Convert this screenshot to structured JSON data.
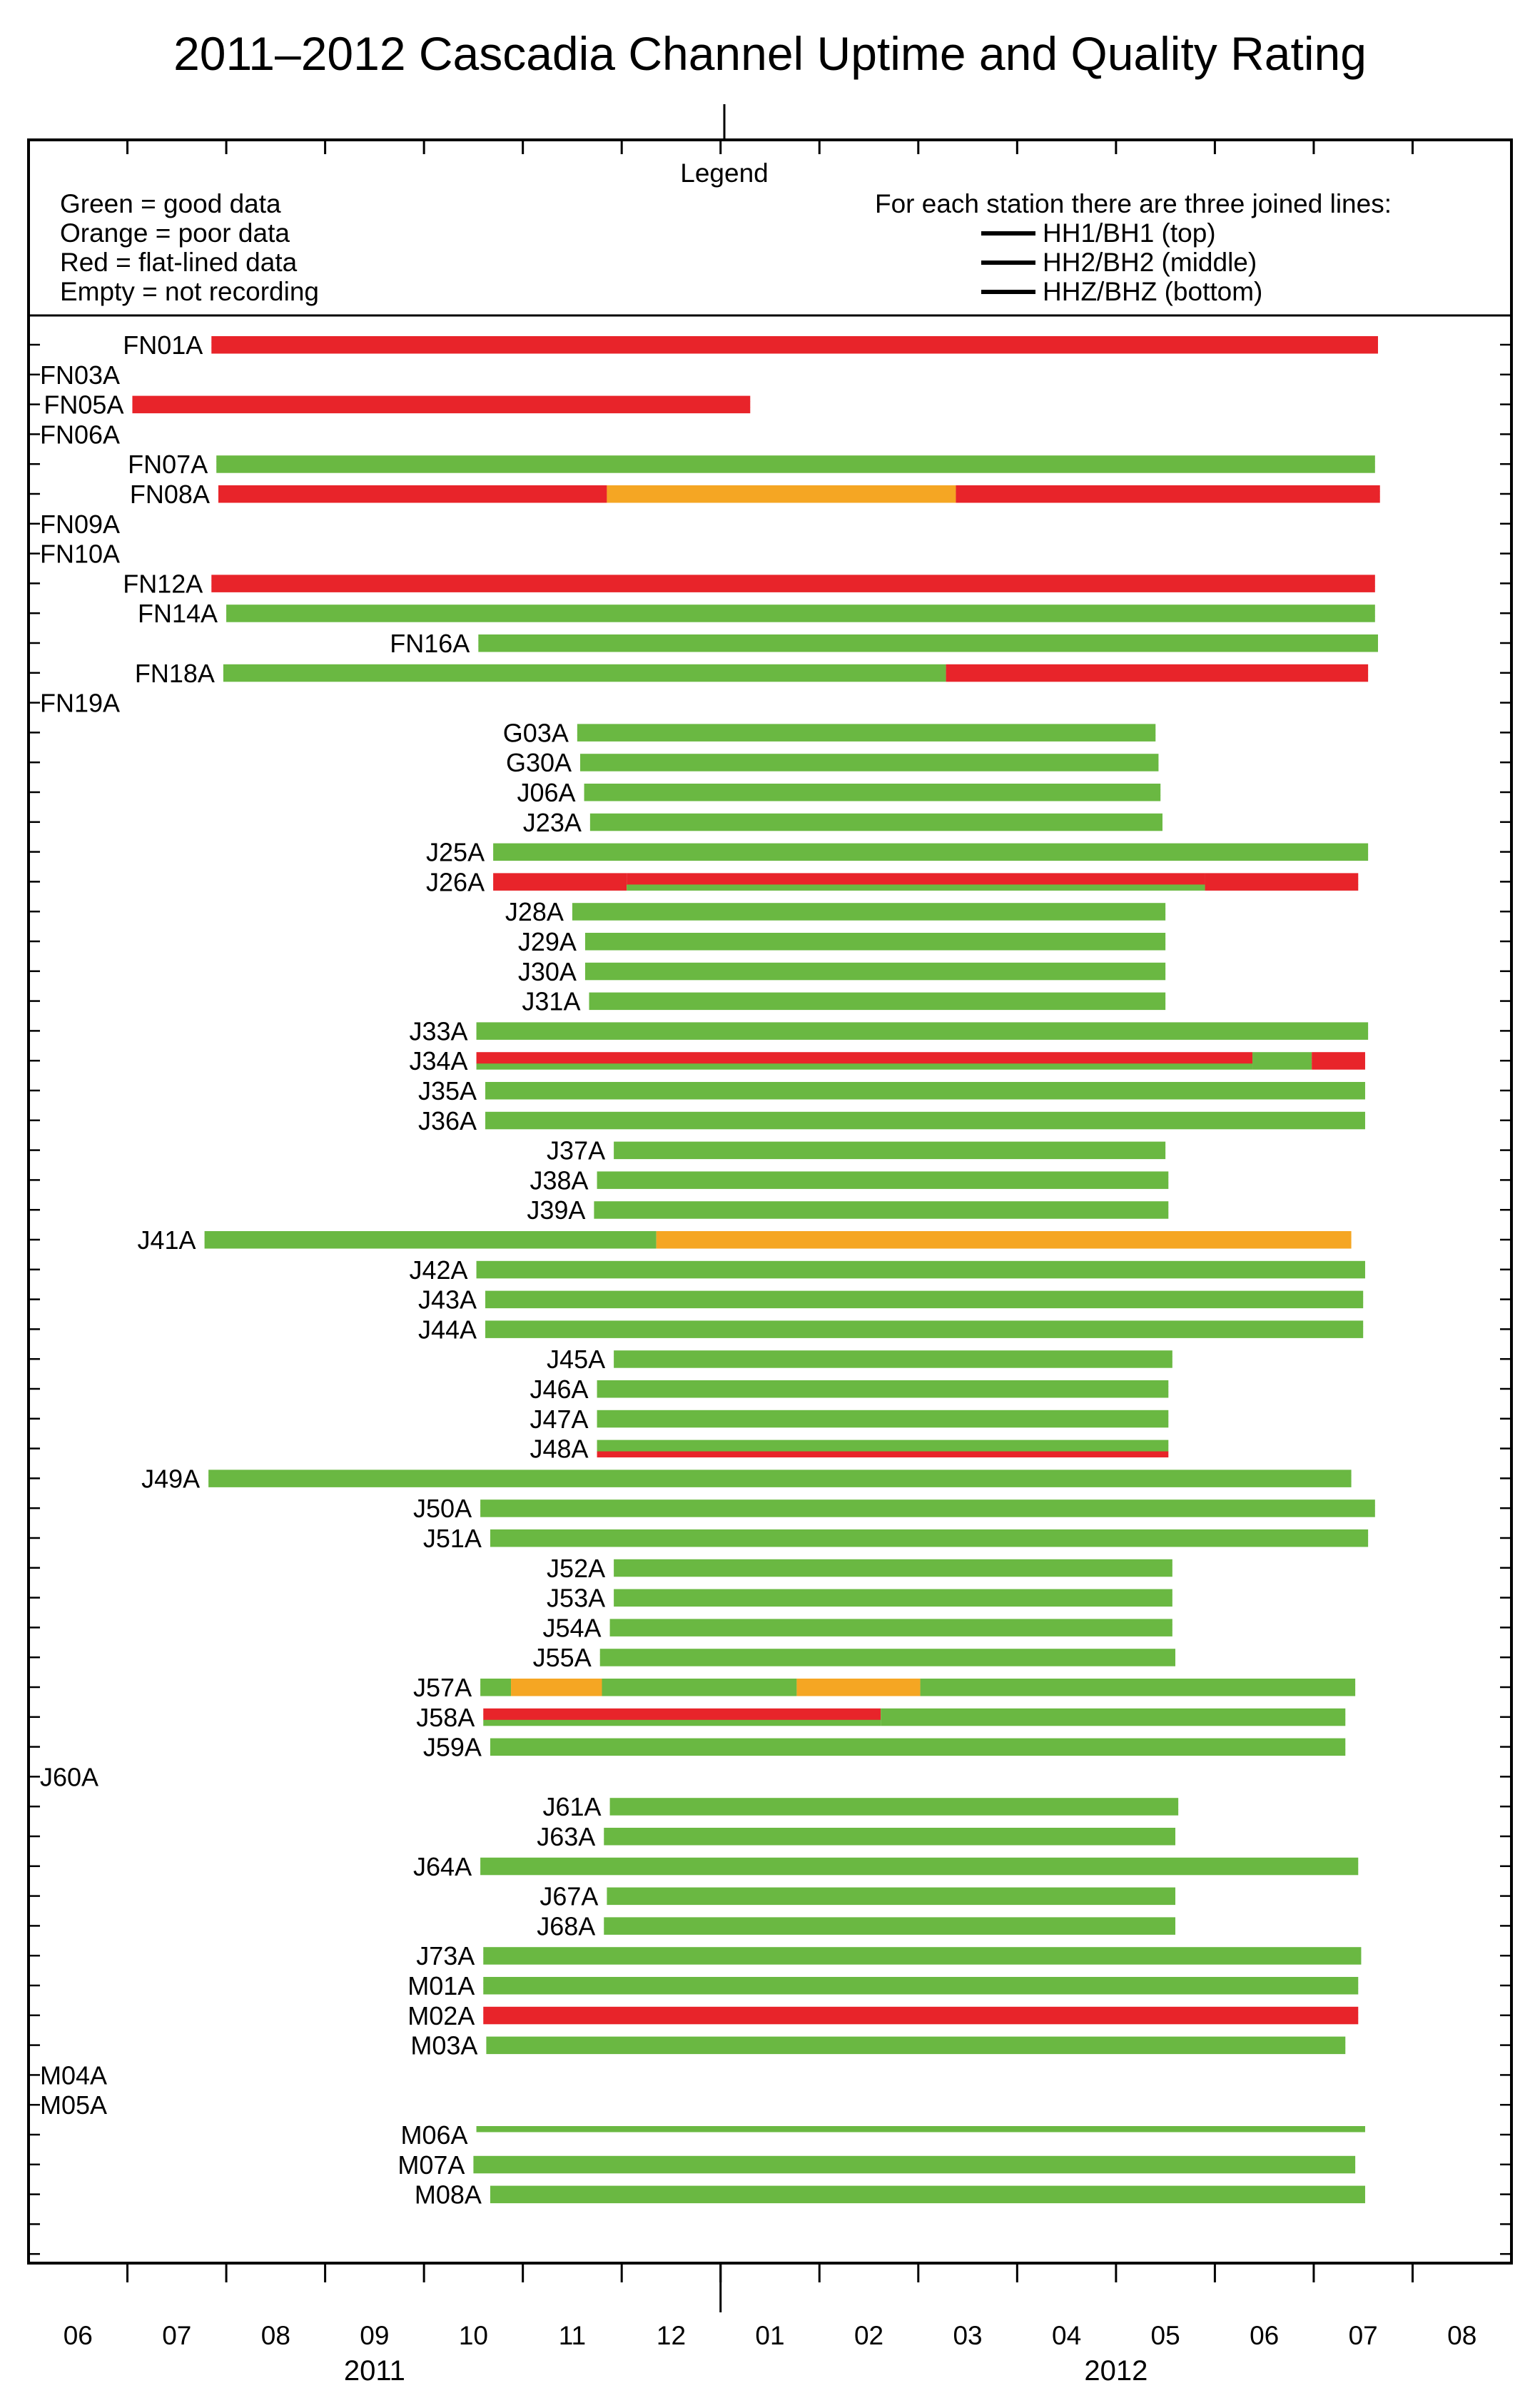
{
  "chart_data": {
    "type": "timeline",
    "title": "2011–2012 Cascadia Channel Uptime and Quality Rating",
    "legend": {
      "heading": "Legend",
      "color_items": [
        "Green = good data",
        "Orange = poor data",
        "Red = flat-lined data",
        "Empty = not recording"
      ],
      "lines_heading": "For each station there are three joined lines:",
      "line_items": [
        "HH1/BH1 (top)",
        "HH2/BH2 (middle)",
        "HHZ/BHZ (bottom)"
      ]
    },
    "colors": {
      "good": "#6ab842",
      "poor": "#f5a623",
      "flat": "#e8242a"
    },
    "x_axis": {
      "start": "2011-05-16",
      "end": "2012-08-15",
      "month_labels": [
        "06",
        "07",
        "08",
        "09",
        "10",
        "11",
        "12",
        "01",
        "02",
        "03",
        "04",
        "05",
        "06",
        "07",
        "08"
      ],
      "month_positions": [
        0.5,
        1.5,
        2.5,
        3.5,
        4.5,
        5.5,
        6.5,
        7.5,
        8.5,
        9.5,
        10.5,
        11.5,
        12.5,
        13.5,
        14.5
      ],
      "year_labels": [
        {
          "label": "2011",
          "month": 3.5
        },
        {
          "label": "2012",
          "month": 11.0
        }
      ]
    },
    "stations": [
      {
        "name": "FN01A",
        "segments": [
          {
            "start": 1.85,
            "end": 13.65,
            "code": "fff"
          }
        ]
      },
      {
        "name": "FN03A",
        "segments": []
      },
      {
        "name": "FN05A",
        "segments": [
          {
            "start": 1.05,
            "end": 7.3,
            "code": "fff"
          }
        ]
      },
      {
        "name": "FN06A",
        "segments": []
      },
      {
        "name": "FN07A",
        "segments": [
          {
            "start": 1.9,
            "end": 13.62,
            "code": "ggg"
          }
        ]
      },
      {
        "name": "FN08A",
        "segments": [
          {
            "start": 1.92,
            "end": 5.85,
            "code": "fff"
          },
          {
            "start": 5.85,
            "end": 9.38,
            "code": "ppp"
          },
          {
            "start": 9.38,
            "end": 13.67,
            "code": "fff"
          }
        ]
      },
      {
        "name": "FN09A",
        "segments": []
      },
      {
        "name": "FN10A",
        "segments": []
      },
      {
        "name": "FN12A",
        "segments": [
          {
            "start": 1.85,
            "end": 13.62,
            "code": "fff"
          }
        ]
      },
      {
        "name": "FN14A",
        "segments": [
          {
            "start": 2.0,
            "end": 13.62,
            "code": "ggg"
          }
        ]
      },
      {
        "name": "FN16A",
        "segments": [
          {
            "start": 4.55,
            "end": 13.65,
            "code": "ggg"
          }
        ]
      },
      {
        "name": "FN18A",
        "segments": [
          {
            "start": 1.97,
            "end": 9.28,
            "code": "ggg"
          },
          {
            "start": 9.28,
            "end": 13.55,
            "code": "fff"
          }
        ]
      },
      {
        "name": "FN19A",
        "segments": []
      },
      {
        "name": "G03A",
        "segments": [
          {
            "start": 5.55,
            "end": 11.4,
            "code": "ggg"
          }
        ]
      },
      {
        "name": "G30A",
        "segments": [
          {
            "start": 5.58,
            "end": 11.43,
            "code": "ggg"
          }
        ]
      },
      {
        "name": "J06A",
        "segments": [
          {
            "start": 5.62,
            "end": 11.45,
            "code": "ggg"
          }
        ]
      },
      {
        "name": "J23A",
        "segments": [
          {
            "start": 5.68,
            "end": 11.47,
            "code": "ggg"
          }
        ]
      },
      {
        "name": "J25A",
        "segments": [
          {
            "start": 4.7,
            "end": 13.55,
            "code": "ggg"
          }
        ]
      },
      {
        "name": "J26A",
        "segments": [
          {
            "start": 4.7,
            "end": 6.05,
            "code": "fff"
          },
          {
            "start": 6.05,
            "end": 11.9,
            "code": "ffg"
          },
          {
            "start": 11.9,
            "end": 13.45,
            "code": "fff"
          }
        ]
      },
      {
        "name": "J28A",
        "segments": [
          {
            "start": 5.5,
            "end": 11.5,
            "code": "ggg"
          }
        ]
      },
      {
        "name": "J29A",
        "segments": [
          {
            "start": 5.63,
            "end": 11.5,
            "code": "ggg"
          }
        ]
      },
      {
        "name": "J30A",
        "segments": [
          {
            "start": 5.63,
            "end": 11.5,
            "code": "ggg"
          }
        ]
      },
      {
        "name": "J31A",
        "segments": [
          {
            "start": 5.67,
            "end": 11.5,
            "code": "ggg"
          }
        ]
      },
      {
        "name": "J33A",
        "segments": [
          {
            "start": 4.53,
            "end": 13.55,
            "code": "ggg"
          }
        ]
      },
      {
        "name": "J34A",
        "segments": [
          {
            "start": 4.53,
            "end": 12.38,
            "code": "ffg"
          },
          {
            "start": 12.38,
            "end": 12.98,
            "code": "ggg"
          },
          {
            "start": 12.98,
            "end": 13.52,
            "code": "fff"
          }
        ]
      },
      {
        "name": "J35A",
        "segments": [
          {
            "start": 4.62,
            "end": 13.52,
            "code": "ggg"
          }
        ]
      },
      {
        "name": "J36A",
        "segments": [
          {
            "start": 4.62,
            "end": 13.52,
            "code": "ggg"
          }
        ]
      },
      {
        "name": "J37A",
        "segments": [
          {
            "start": 5.92,
            "end": 11.5,
            "code": "ggg"
          }
        ]
      },
      {
        "name": "J38A",
        "segments": [
          {
            "start": 5.75,
            "end": 11.53,
            "code": "ggg"
          }
        ]
      },
      {
        "name": "J39A",
        "segments": [
          {
            "start": 5.72,
            "end": 11.53,
            "code": "ggg"
          }
        ]
      },
      {
        "name": "J41A",
        "segments": [
          {
            "start": 1.78,
            "end": 6.35,
            "code": "ggg"
          },
          {
            "start": 6.35,
            "end": 13.38,
            "code": "ppp"
          }
        ]
      },
      {
        "name": "J42A",
        "segments": [
          {
            "start": 4.53,
            "end": 13.52,
            "code": "ggg"
          }
        ]
      },
      {
        "name": "J43A",
        "segments": [
          {
            "start": 4.62,
            "end": 13.5,
            "code": "ggg"
          }
        ]
      },
      {
        "name": "J44A",
        "segments": [
          {
            "start": 4.62,
            "end": 13.5,
            "code": "ggg"
          }
        ]
      },
      {
        "name": "J45A",
        "segments": [
          {
            "start": 5.92,
            "end": 11.57,
            "code": "ggg"
          }
        ]
      },
      {
        "name": "J46A",
        "segments": [
          {
            "start": 5.75,
            "end": 11.53,
            "code": "ggg"
          }
        ]
      },
      {
        "name": "J47A",
        "segments": [
          {
            "start": 5.75,
            "end": 11.53,
            "code": "ggg"
          }
        ]
      },
      {
        "name": "J48A",
        "segments": [
          {
            "start": 5.75,
            "end": 11.53,
            "code": "ggf"
          }
        ]
      },
      {
        "name": "J49A",
        "segments": [
          {
            "start": 1.82,
            "end": 13.38,
            "code": "ggg"
          }
        ]
      },
      {
        "name": "J50A",
        "segments": [
          {
            "start": 4.57,
            "end": 13.62,
            "code": "ggg"
          }
        ]
      },
      {
        "name": "J51A",
        "segments": [
          {
            "start": 4.67,
            "end": 13.55,
            "code": "ggg"
          }
        ]
      },
      {
        "name": "J52A",
        "segments": [
          {
            "start": 5.92,
            "end": 11.57,
            "code": "ggg"
          }
        ]
      },
      {
        "name": "J53A",
        "segments": [
          {
            "start": 5.92,
            "end": 11.57,
            "code": "ggg"
          }
        ]
      },
      {
        "name": "J54A",
        "segments": [
          {
            "start": 5.88,
            "end": 11.57,
            "code": "ggg"
          }
        ]
      },
      {
        "name": "J55A",
        "segments": [
          {
            "start": 5.78,
            "end": 11.6,
            "code": "ggg"
          }
        ]
      },
      {
        "name": "J57A",
        "segments": [
          {
            "start": 4.57,
            "end": 4.88,
            "code": "ggg"
          },
          {
            "start": 4.88,
            "end": 5.8,
            "code": "ppp"
          },
          {
            "start": 5.8,
            "end": 7.77,
            "code": "ggg"
          },
          {
            "start": 7.77,
            "end": 9.02,
            "code": "ppp"
          },
          {
            "start": 9.02,
            "end": 13.42,
            "code": "ggg"
          }
        ]
      },
      {
        "name": "J58A",
        "segments": [
          {
            "start": 4.6,
            "end": 8.62,
            "code": "ffg"
          },
          {
            "start": 8.62,
            "end": 13.32,
            "code": "ggg"
          }
        ]
      },
      {
        "name": "J59A",
        "segments": [
          {
            "start": 4.67,
            "end": 13.32,
            "code": "ggg"
          }
        ]
      },
      {
        "name": "J60A",
        "segments": []
      },
      {
        "name": "J61A",
        "segments": [
          {
            "start": 5.88,
            "end": 11.63,
            "code": "ggg"
          }
        ]
      },
      {
        "name": "J63A",
        "segments": [
          {
            "start": 5.82,
            "end": 11.6,
            "code": "ggg"
          }
        ]
      },
      {
        "name": "J64A",
        "segments": [
          {
            "start": 4.57,
            "end": 13.45,
            "code": "ggg"
          }
        ]
      },
      {
        "name": "J67A",
        "segments": [
          {
            "start": 5.85,
            "end": 11.6,
            "code": "ggg"
          }
        ]
      },
      {
        "name": "J68A",
        "segments": [
          {
            "start": 5.82,
            "end": 11.6,
            "code": "ggg"
          }
        ]
      },
      {
        "name": "J73A",
        "segments": [
          {
            "start": 4.6,
            "end": 13.48,
            "code": "ggg"
          }
        ]
      },
      {
        "name": "M01A",
        "segments": [
          {
            "start": 4.6,
            "end": 13.45,
            "code": "ggg"
          }
        ]
      },
      {
        "name": "M02A",
        "segments": [
          {
            "start": 4.6,
            "end": 13.45,
            "code": "fff"
          }
        ]
      },
      {
        "name": "M03A",
        "segments": [
          {
            "start": 4.63,
            "end": 13.32,
            "code": "ggg"
          }
        ]
      },
      {
        "name": "M04A",
        "segments": []
      },
      {
        "name": "M05A",
        "segments": []
      },
      {
        "name": "M06A",
        "segments": [
          {
            "start": 4.53,
            "end": 13.52,
            "code": "g__"
          }
        ]
      },
      {
        "name": "M07A",
        "segments": [
          {
            "start": 4.5,
            "end": 13.42,
            "code": "ggg"
          }
        ]
      },
      {
        "name": "M08A",
        "segments": [
          {
            "start": 4.67,
            "end": 13.52,
            "code": "ggg"
          }
        ]
      }
    ]
  }
}
